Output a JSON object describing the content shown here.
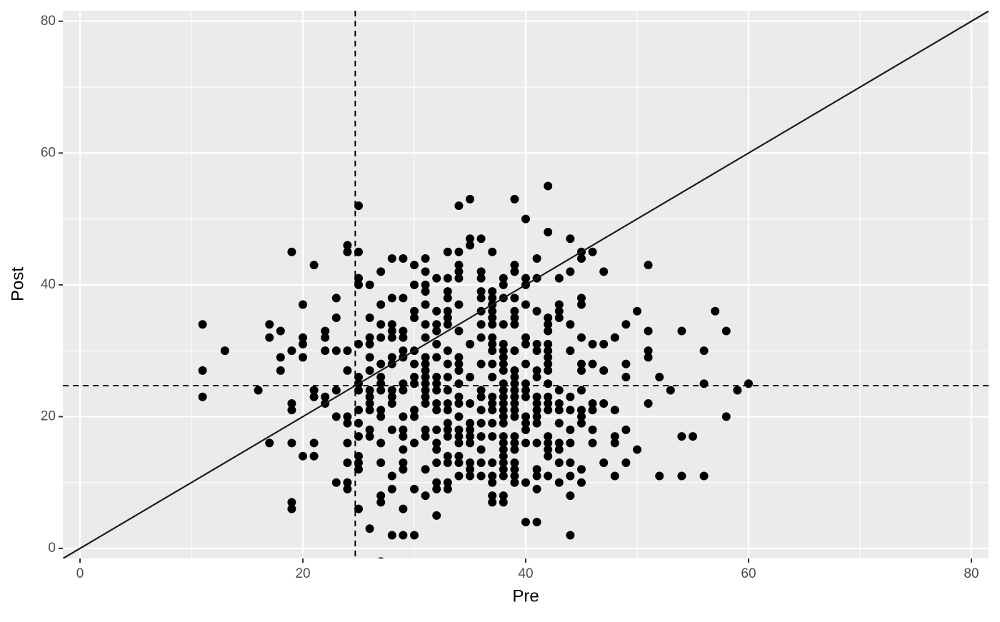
{
  "chart_data": {
    "type": "scatter",
    "x_label": "Pre",
    "y_label": "Post",
    "xlim": [
      -1.54,
      81.54
    ],
    "ylim": [
      -1.52,
      81.6
    ],
    "xticks": [
      0,
      20,
      40,
      60,
      80
    ],
    "yticks": [
      0,
      20,
      40,
      60,
      80
    ],
    "x_minor_grid": [
      10,
      30,
      50,
      70
    ],
    "y_minor_grid": [
      10,
      30,
      50,
      70
    ],
    "grid": true,
    "color": "#000000",
    "vline": 24.7,
    "hline": 24.7,
    "abline": {
      "intercept": 0,
      "slope": 1
    },
    "x": [
      11,
      11,
      11,
      13,
      16,
      17,
      17,
      17,
      18,
      18,
      18,
      19,
      19,
      19,
      19,
      19,
      19,
      19,
      20,
      20,
      20,
      20,
      20,
      21,
      21,
      21,
      21,
      21,
      22,
      22,
      22,
      22,
      22,
      23,
      23,
      23,
      23,
      23,
      23,
      24,
      24,
      24,
      24,
      24,
      24,
      24,
      24,
      24,
      24,
      25,
      25,
      25,
      25,
      25,
      25,
      25,
      25,
      25,
      25,
      25,
      25,
      25,
      25,
      25,
      26,
      26,
      26,
      26,
      26,
      26,
      26,
      26,
      26,
      26,
      26,
      26,
      26,
      27,
      27,
      27,
      27,
      27,
      27,
      27,
      27,
      27,
      27,
      27,
      27,
      27,
      27,
      27,
      28,
      28,
      28,
      28,
      28,
      28,
      28,
      28,
      28,
      28,
      28,
      28,
      28,
      28,
      29,
      29,
      29,
      29,
      29,
      29,
      29,
      29,
      29,
      29,
      29,
      29,
      29,
      29,
      29,
      29,
      30,
      30,
      30,
      30,
      30,
      30,
      30,
      30,
      30,
      30,
      30,
      30,
      30,
      31,
      31,
      31,
      31,
      31,
      31,
      31,
      31,
      31,
      31,
      31,
      31,
      31,
      31,
      31,
      31,
      31,
      31,
      31,
      32,
      32,
      32,
      32,
      32,
      32,
      32,
      32,
      32,
      32,
      32,
      32,
      32,
      32,
      32,
      32,
      32,
      32,
      33,
      33,
      33,
      33,
      33,
      33,
      33,
      33,
      33,
      33,
      33,
      33,
      33,
      33,
      33,
      33,
      33,
      33,
      33,
      33,
      34,
      34,
      34,
      34,
      34,
      34,
      34,
      34,
      34,
      34,
      34,
      34,
      34,
      34,
      34,
      34,
      34,
      34,
      34,
      34,
      35,
      35,
      35,
      35,
      35,
      35,
      35,
      35,
      35,
      35,
      35,
      35,
      35,
      36,
      36,
      36,
      36,
      36,
      36,
      36,
      36,
      36,
      36,
      36,
      36,
      36,
      36,
      36,
      36,
      36,
      37,
      37,
      37,
      37,
      37,
      37,
      37,
      37,
      37,
      37,
      37,
      37,
      37,
      37,
      37,
      37,
      37,
      37,
      37,
      37,
      37,
      37,
      38,
      38,
      38,
      38,
      38,
      38,
      38,
      38,
      38,
      38,
      38,
      38,
      38,
      38,
      38,
      38,
      38,
      38,
      38,
      38,
      38,
      38,
      38,
      38,
      38,
      39,
      39,
      39,
      39,
      39,
      39,
      39,
      39,
      39,
      39,
      39,
      39,
      39,
      39,
      39,
      39,
      39,
      39,
      39,
      39,
      39,
      39,
      39,
      40,
      40,
      40,
      40,
      40,
      40,
      40,
      40,
      40,
      40,
      40,
      40,
      40,
      40,
      40,
      40,
      41,
      41,
      41,
      41,
      41,
      41,
      41,
      41,
      41,
      41,
      41,
      41,
      41,
      41,
      41,
      41,
      41,
      42,
      42,
      42,
      42,
      42,
      42,
      42,
      42,
      42,
      42,
      42,
      42,
      42,
      42,
      42,
      42,
      42,
      42,
      42,
      43,
      43,
      43,
      43,
      43,
      43,
      43,
      43,
      43,
      43,
      43,
      43,
      44,
      44,
      44,
      44,
      44,
      44,
      44,
      44,
      44,
      44,
      44,
      44,
      45,
      45,
      45,
      45,
      45,
      45,
      45,
      45,
      45,
      45,
      45,
      45,
      45,
      46,
      46,
      46,
      46,
      46,
      46,
      46,
      47,
      47,
      47,
      47,
      47,
      48,
      48,
      48,
      48,
      48,
      49,
      49,
      49,
      49,
      49,
      50,
      50,
      51,
      51,
      51,
      51,
      51,
      52,
      52,
      53,
      54,
      54,
      54,
      55,
      56,
      56,
      56,
      57,
      58,
      58,
      59,
      60
    ],
    "values": [
      34,
      27,
      23,
      30,
      24,
      34,
      32,
      16,
      33,
      29,
      27,
      45,
      30,
      22,
      21,
      16,
      7,
      6,
      37,
      32,
      31,
      29,
      14,
      43,
      24,
      23,
      16,
      14,
      33,
      32,
      30,
      23,
      22,
      38,
      35,
      30,
      24,
      20,
      10,
      46,
      45,
      30,
      27,
      20,
      19,
      16,
      13,
      10,
      9,
      52,
      45,
      41,
      40,
      31,
      26,
      25,
      24,
      21,
      19,
      17,
      14,
      13,
      12,
      6,
      40,
      35,
      32,
      31,
      29,
      27,
      24,
      23,
      22,
      21,
      18,
      17,
      3,
      42,
      37,
      34,
      32,
      28,
      26,
      25,
      24,
      21,
      20,
      16,
      13,
      8,
      7,
      -2,
      44,
      38,
      34,
      33,
      32,
      29,
      28,
      24,
      23,
      22,
      18,
      11,
      9,
      2,
      44,
      38,
      33,
      32,
      30,
      29,
      25,
      24,
      20,
      18,
      17,
      15,
      13,
      12,
      6,
      2,
      43,
      40,
      36,
      35,
      30,
      28,
      26,
      25,
      21,
      20,
      16,
      9,
      2,
      44,
      42,
      40,
      39,
      37,
      34,
      32,
      29,
      28,
      27,
      26,
      25,
      24,
      23,
      22,
      18,
      17,
      12,
      8,
      41,
      36,
      34,
      33,
      31,
      29,
      26,
      25,
      24,
      22,
      21,
      18,
      16,
      15,
      13,
      10,
      9,
      5,
      45,
      41,
      39,
      38,
      36,
      35,
      34,
      30,
      28,
      26,
      24,
      22,
      21,
      19,
      18,
      17,
      14,
      13,
      10,
      9,
      52,
      45,
      43,
      42,
      41,
      37,
      33,
      29,
      28,
      27,
      25,
      23,
      22,
      20,
      18,
      17,
      16,
      14,
      13,
      11,
      53,
      47,
      46,
      31,
      26,
      22,
      19,
      18,
      17,
      16,
      13,
      12,
      11,
      47,
      42,
      41,
      39,
      38,
      36,
      34,
      32,
      28,
      24,
      23,
      21,
      19,
      17,
      15,
      13,
      11,
      45,
      39,
      38,
      37,
      36,
      35,
      34,
      32,
      31,
      30,
      28,
      26,
      23,
      22,
      21,
      19,
      17,
      13,
      11,
      10,
      8,
      7,
      41,
      40,
      38,
      34,
      31,
      30,
      29,
      28,
      27,
      25,
      24,
      23,
      22,
      21,
      20,
      19,
      17,
      16,
      15,
      14,
      13,
      12,
      11,
      8,
      7,
      53,
      43,
      42,
      38,
      36,
      35,
      34,
      30,
      27,
      26,
      25,
      24,
      23,
      22,
      21,
      20,
      17,
      16,
      15,
      13,
      12,
      11,
      10,
      50,
      41,
      40,
      37,
      32,
      31,
      28,
      25,
      24,
      23,
      20,
      19,
      18,
      16,
      10,
      4,
      44,
      41,
      36,
      31,
      30,
      27,
      26,
      23,
      22,
      21,
      20,
      19,
      16,
      12,
      11,
      9,
      4,
      55,
      48,
      35,
      34,
      33,
      31,
      30,
      29,
      28,
      27,
      25,
      23,
      22,
      21,
      17,
      16,
      15,
      14,
      11,
      41,
      37,
      36,
      35,
      24,
      22,
      21,
      19,
      16,
      15,
      13,
      10,
      47,
      42,
      34,
      30,
      23,
      21,
      18,
      16,
      13,
      11,
      8,
      2,
      45,
      44,
      38,
      37,
      32,
      28,
      27,
      24,
      21,
      20,
      19,
      12,
      10,
      45,
      31,
      28,
      22,
      21,
      18,
      16,
      42,
      31,
      27,
      22,
      13,
      32,
      21,
      17,
      16,
      11,
      34,
      28,
      26,
      18,
      13,
      36,
      15,
      43,
      33,
      30,
      29,
      22,
      26,
      11,
      24,
      33,
      17,
      11,
      17,
      30,
      25,
      11,
      36,
      33,
      20,
      24,
      25
    ]
  }
}
